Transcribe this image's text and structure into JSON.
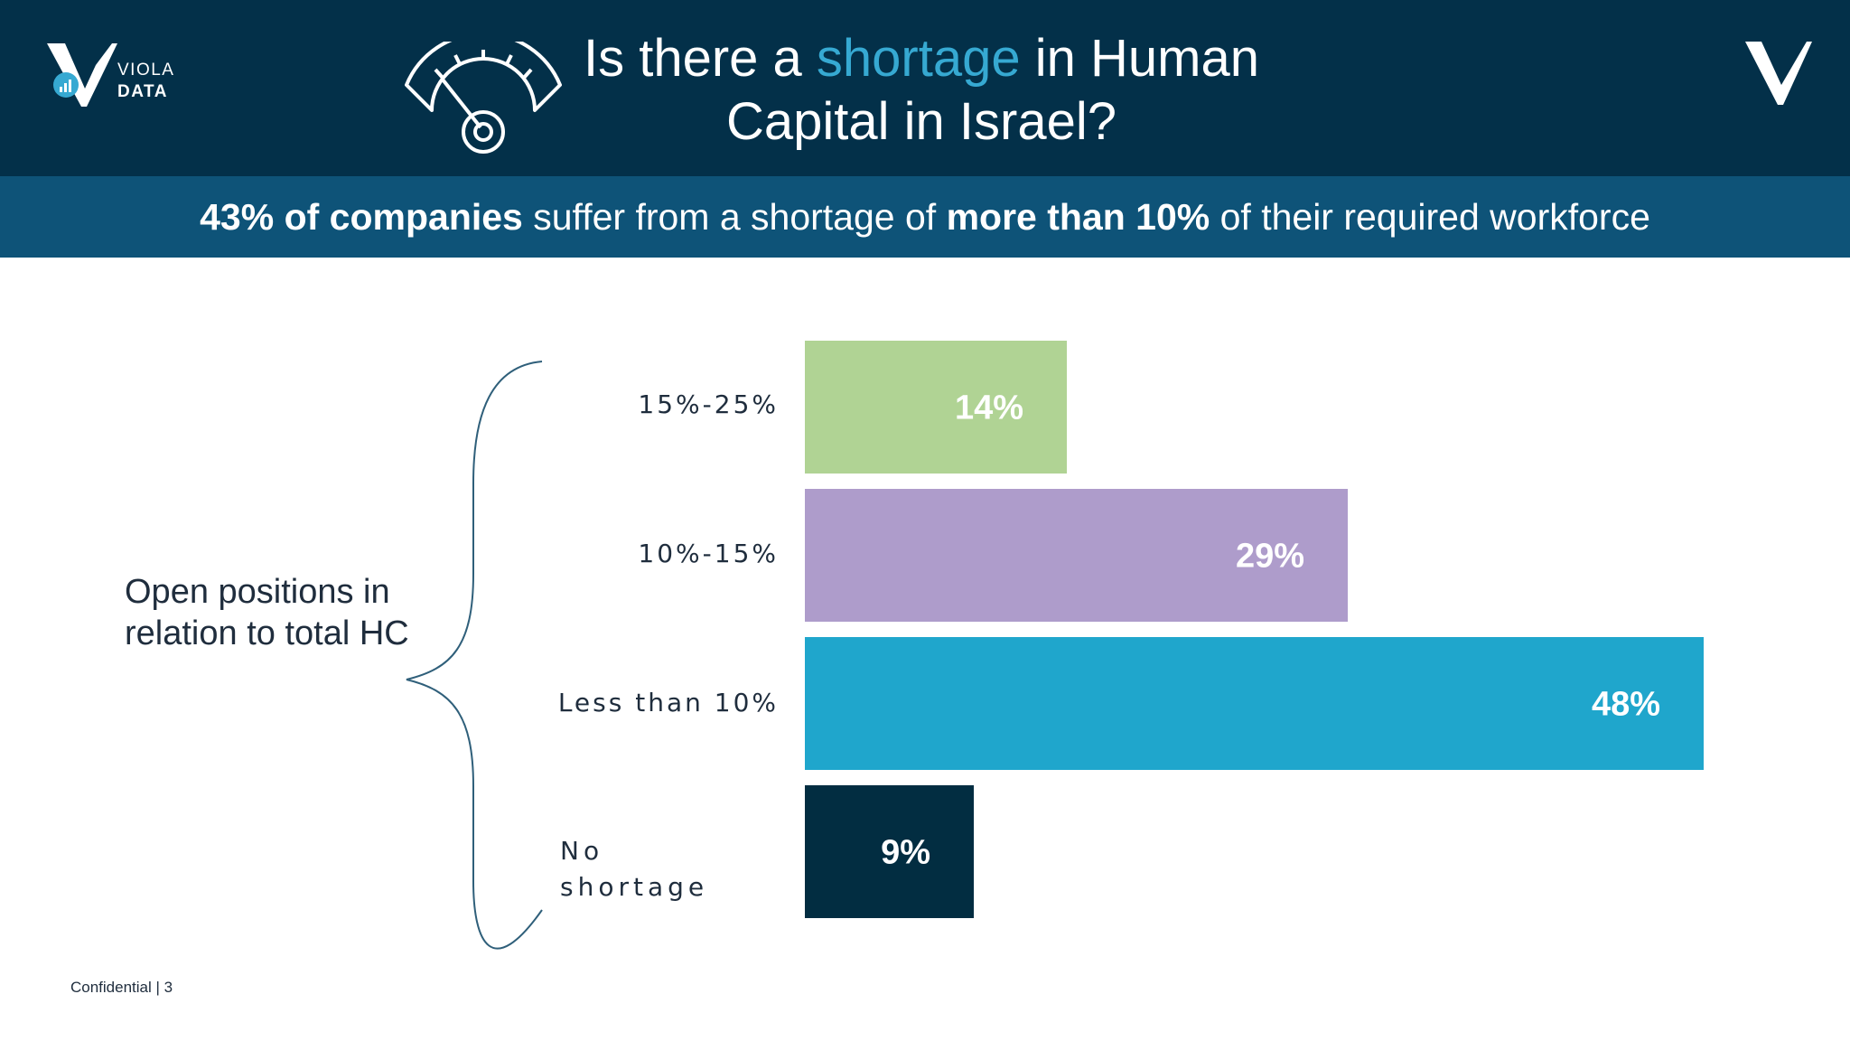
{
  "header": {
    "logo": {
      "line1": "VIOLA",
      "line2": "DATA"
    },
    "title_part1": "Is there a ",
    "title_highlight": "shortage",
    "title_part2": " in Human",
    "title_line2": "Capital in Israel?",
    "colors": {
      "background": "#033049",
      "highlight": "#36a9d2"
    },
    "icons": [
      "viola-data-logo-icon",
      "gauge-icon",
      "viola-v-logo-icon"
    ]
  },
  "subtitle": {
    "bold1": "43% of companies",
    "text1": " suffer from a shortage of ",
    "bold2": "more than 10%",
    "text2": " of their required workforce",
    "background": "#0e5378"
  },
  "side_label": "Open positions in relation to total HC",
  "footer": "Confidential | 3",
  "chart_data": {
    "type": "bar",
    "orientation": "horizontal",
    "categories": [
      "15%-25%",
      "10%-15%",
      "Less than 10%",
      "No shortage"
    ],
    "values": [
      14,
      29,
      48,
      9
    ],
    "data_labels": [
      "14%",
      "29%",
      "48%",
      "9%"
    ],
    "colors": [
      "#b0d394",
      "#ae9ccb",
      "#1fa6cc",
      "#022d41"
    ],
    "unit": "%",
    "xlim": [
      0,
      48
    ],
    "grid": false,
    "legend": "none"
  }
}
